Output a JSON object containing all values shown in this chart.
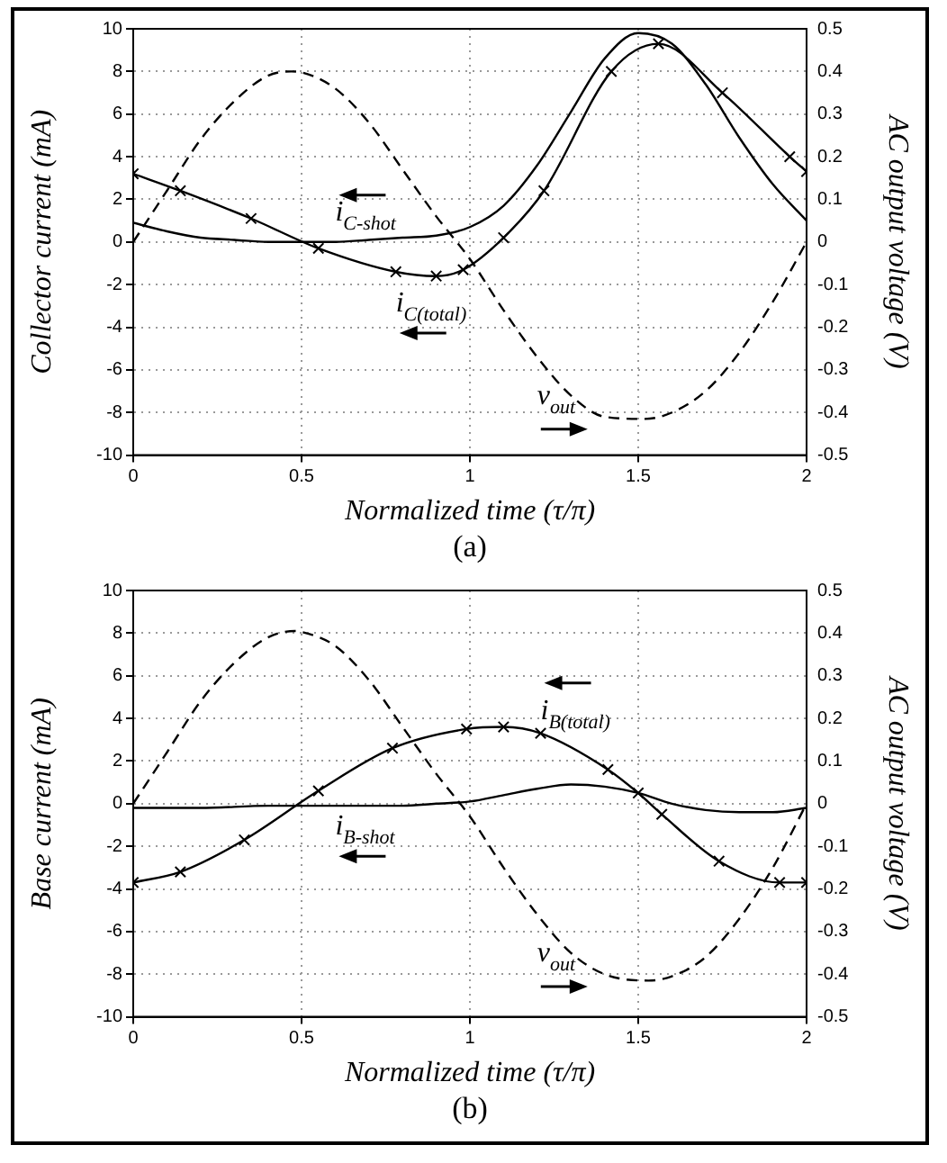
{
  "chart_data": [
    {
      "type": "line",
      "xlabel": "Normalized time (τ/π)",
      "ylabel": "Collector current (mA)",
      "y2label": "AC output voltage (V)",
      "xlim": [
        0,
        2
      ],
      "xticks": [
        0,
        0.5,
        1,
        1.5,
        2
      ],
      "ylim": [
        -10,
        10
      ],
      "yticks": [
        -10,
        -8,
        -6,
        -4,
        -2,
        0,
        2,
        4,
        6,
        8,
        10
      ],
      "y2lim": [
        -0.5,
        0.5
      ],
      "y2ticks": [
        -0.5,
        -0.4,
        -0.3,
        -0.2,
        -0.1,
        0,
        0.1,
        0.2,
        0.3,
        0.4,
        0.5
      ],
      "grid": true,
      "annotations": [
        "(a)"
      ],
      "series": [
        {
          "name": "i$_{C-shot}$",
          "color": "#000000",
          "marker": "none",
          "line_style": "solid",
          "x": [
            0,
            0.1,
            0.2,
            0.3,
            0.4,
            0.5,
            0.6,
            0.7,
            0.8,
            0.9,
            1.0,
            1.1,
            1.2,
            1.3,
            1.4,
            1.5,
            1.6,
            1.7,
            1.8,
            1.9,
            2.0
          ],
          "values": [
            0.9,
            0.5,
            0.2,
            0.1,
            0.0,
            0.0,
            0.0,
            0.1,
            0.2,
            0.3,
            0.7,
            1.7,
            3.6,
            6.1,
            8.6,
            9.8,
            9.3,
            7.4,
            4.9,
            2.7,
            1.0
          ]
        },
        {
          "name": "i$_{C(total)}$",
          "color": "#000000",
          "marker": "cross",
          "line_style": "solid",
          "x": [
            0,
            0.14,
            0.35,
            0.55,
            0.78,
            0.9,
            0.98,
            1.1,
            1.22,
            1.42,
            1.56,
            1.75,
            1.95,
            2.0
          ],
          "values": [
            3.2,
            2.4,
            1.1,
            -0.3,
            -1.4,
            -1.6,
            -1.3,
            0.2,
            2.4,
            8.0,
            9.3,
            7.0,
            4.0,
            3.3
          ]
        },
        {
          "name": "v$_{out}$",
          "color": "#000000",
          "marker": "none",
          "line_style": "dashed",
          "axis": "y2",
          "x": [
            0,
            0.1,
            0.2,
            0.3,
            0.4,
            0.47,
            0.5,
            0.6,
            0.7,
            0.8,
            0.9,
            1.0,
            1.1,
            1.2,
            1.3,
            1.4,
            1.52,
            1.6,
            1.7,
            1.8,
            1.9,
            2.0
          ],
          "values": [
            0,
            0.12,
            0.24,
            0.33,
            0.39,
            0.4,
            0.398,
            0.36,
            0.28,
            0.17,
            0.06,
            -0.04,
            -0.16,
            -0.27,
            -0.36,
            -0.41,
            -0.415,
            -0.4,
            -0.35,
            -0.26,
            -0.14,
            0
          ]
        }
      ]
    },
    {
      "type": "line",
      "xlabel": "Normalized time (τ/π)",
      "ylabel": "Base current (mA)",
      "y2label": "AC output voltage (V)",
      "xlim": [
        0,
        2
      ],
      "xticks": [
        0,
        0.5,
        1,
        1.5,
        2
      ],
      "ylim": [
        -10,
        10
      ],
      "yticks": [
        -10,
        -8,
        -6,
        -4,
        -2,
        0,
        2,
        4,
        6,
        8,
        10
      ],
      "y2lim": [
        -0.5,
        0.5
      ],
      "y2ticks": [
        -0.5,
        -0.4,
        -0.3,
        -0.2,
        -0.1,
        0,
        0.1,
        0.2,
        0.3,
        0.4,
        0.5
      ],
      "grid": true,
      "annotations": [
        "(b)"
      ],
      "series": [
        {
          "name": "i$_{B(total)}$",
          "color": "#000000",
          "marker": "cross",
          "line_style": "solid",
          "x": [
            0,
            0.14,
            0.33,
            0.55,
            0.77,
            0.99,
            1.1,
            1.21,
            1.41,
            1.5,
            1.57,
            1.74,
            1.92,
            2.0
          ],
          "values": [
            -3.7,
            -3.2,
            -1.7,
            0.6,
            2.6,
            3.5,
            3.6,
            3.3,
            1.6,
            0.5,
            -0.5,
            -2.7,
            -3.7,
            -3.7
          ]
        },
        {
          "name": "i$_{B-shot}$",
          "color": "#000000",
          "marker": "none",
          "line_style": "solid",
          "x": [
            0,
            0.2,
            0.4,
            0.6,
            0.8,
            0.9,
            1.0,
            1.1,
            1.2,
            1.3,
            1.4,
            1.5,
            1.6,
            1.7,
            1.8,
            1.9,
            2.0
          ],
          "values": [
            -0.2,
            -0.2,
            -0.1,
            -0.1,
            -0.1,
            0.0,
            0.1,
            0.4,
            0.7,
            0.9,
            0.8,
            0.5,
            0.0,
            -0.3,
            -0.4,
            -0.4,
            -0.2
          ]
        },
        {
          "name": "v$_{out}$",
          "color": "#000000",
          "marker": "none",
          "line_style": "dashed",
          "axis": "y2",
          "x": [
            0,
            0.1,
            0.2,
            0.3,
            0.4,
            0.48,
            0.5,
            0.6,
            0.7,
            0.8,
            0.9,
            1.0,
            1.1,
            1.2,
            1.3,
            1.4,
            1.53,
            1.6,
            1.7,
            1.8,
            1.9,
            2.0
          ],
          "values": [
            0,
            0.12,
            0.24,
            0.33,
            0.39,
            0.405,
            0.403,
            0.37,
            0.29,
            0.18,
            0.07,
            -0.03,
            -0.15,
            -0.26,
            -0.35,
            -0.4,
            -0.415,
            -0.405,
            -0.36,
            -0.27,
            -0.15,
            0
          ]
        }
      ]
    }
  ]
}
